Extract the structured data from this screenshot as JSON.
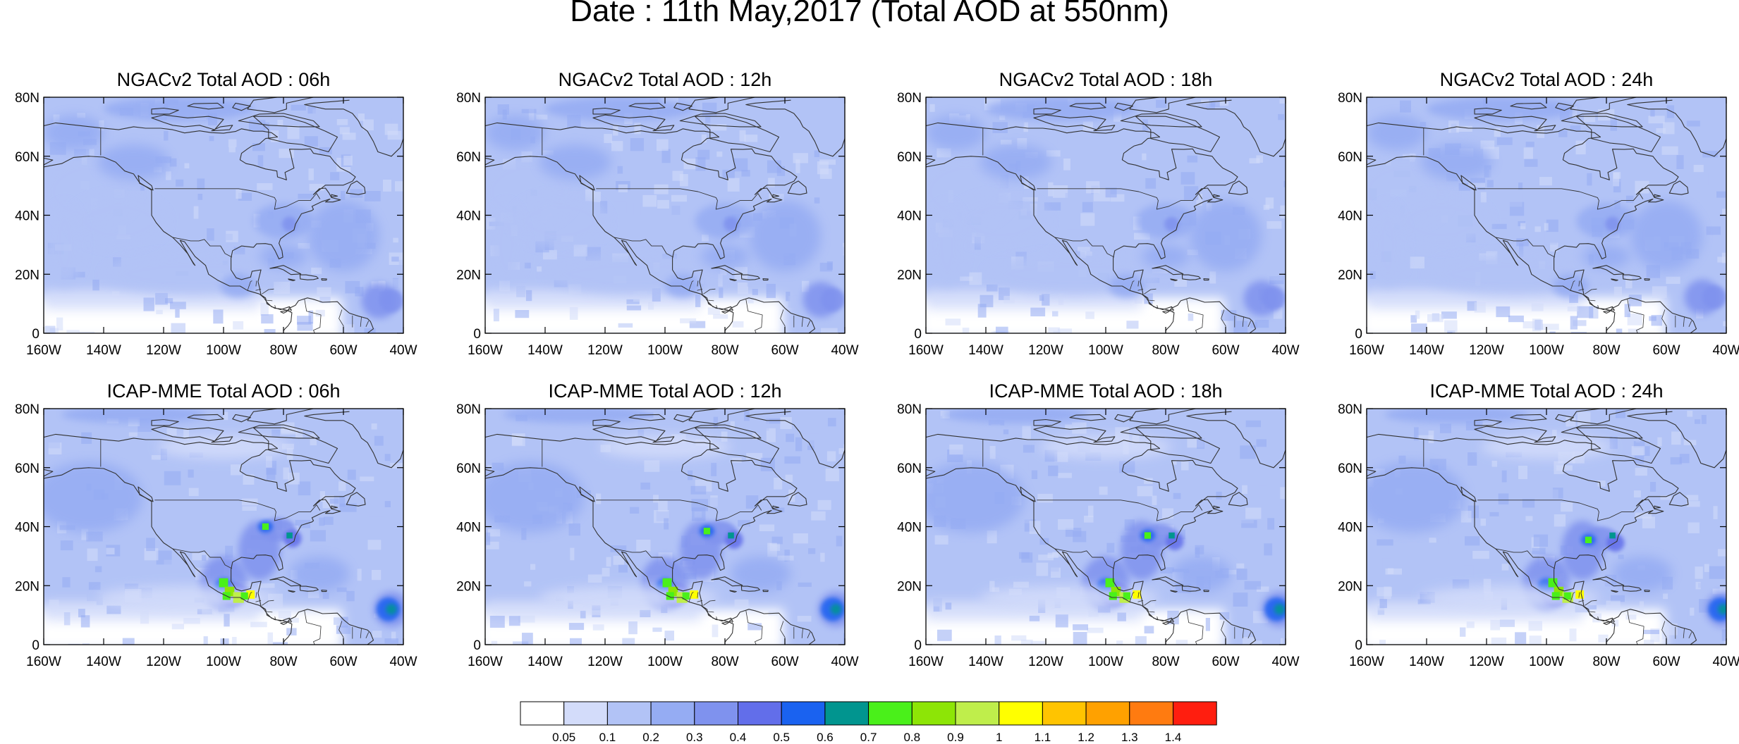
{
  "figure": {
    "title": "Date : 11th May,2017 (Total AOD at 550nm)"
  },
  "axes": {
    "lat_ticks": [
      "80N",
      "60N",
      "40N",
      "20N",
      "0"
    ],
    "lon_ticks": [
      "160W",
      "140W",
      "120W",
      "100W",
      "80W",
      "60W",
      "40W"
    ],
    "lat_range": [
      0,
      80
    ],
    "lon_range": [
      -160,
      -40
    ]
  },
  "panels": [
    {
      "row": 0,
      "col": 0,
      "model": "NGACv2",
      "hour": "06h",
      "title": "NGACv2 Total AOD : 06h"
    },
    {
      "row": 0,
      "col": 1,
      "model": "NGACv2",
      "hour": "12h",
      "title": "NGACv2 Total AOD : 12h"
    },
    {
      "row": 0,
      "col": 2,
      "model": "NGACv2",
      "hour": "18h",
      "title": "NGACv2 Total AOD : 18h"
    },
    {
      "row": 0,
      "col": 3,
      "model": "NGACv2",
      "hour": "24h",
      "title": "NGACv2 Total AOD : 24h"
    },
    {
      "row": 1,
      "col": 0,
      "model": "ICAP-MME",
      "hour": "06h",
      "title": "ICAP-MME Total AOD : 06h"
    },
    {
      "row": 1,
      "col": 1,
      "model": "ICAP-MME",
      "hour": "12h",
      "title": "ICAP-MME Total AOD : 12h"
    },
    {
      "row": 1,
      "col": 2,
      "model": "ICAP-MME",
      "hour": "18h",
      "title": "ICAP-MME Total AOD : 18h"
    },
    {
      "row": 1,
      "col": 3,
      "model": "ICAP-MME",
      "hour": "24h",
      "title": "ICAP-MME Total AOD : 24h"
    }
  ],
  "colorbar": {
    "colors": [
      "#ffffff",
      "#d3dcfa",
      "#b2c3f6",
      "#95acf3",
      "#7f92ee",
      "#626eea",
      "#1a62f0",
      "#01958f",
      "#4af01a",
      "#8de506",
      "#bfee4b",
      "#ffff00",
      "#ffc400",
      "#ffa100",
      "#ff7b10",
      "#ff1e0f"
    ],
    "labels": [
      "0.05",
      "0.1",
      "0.2",
      "0.3",
      "0.4",
      "0.5",
      "0.6",
      "0.7",
      "0.8",
      "0.9",
      "1",
      "1.1",
      "1.2",
      "1.3",
      "1.4"
    ]
  },
  "colors": {
    "background_aod": "#b2c3f6",
    "coastline": "#333333"
  }
}
